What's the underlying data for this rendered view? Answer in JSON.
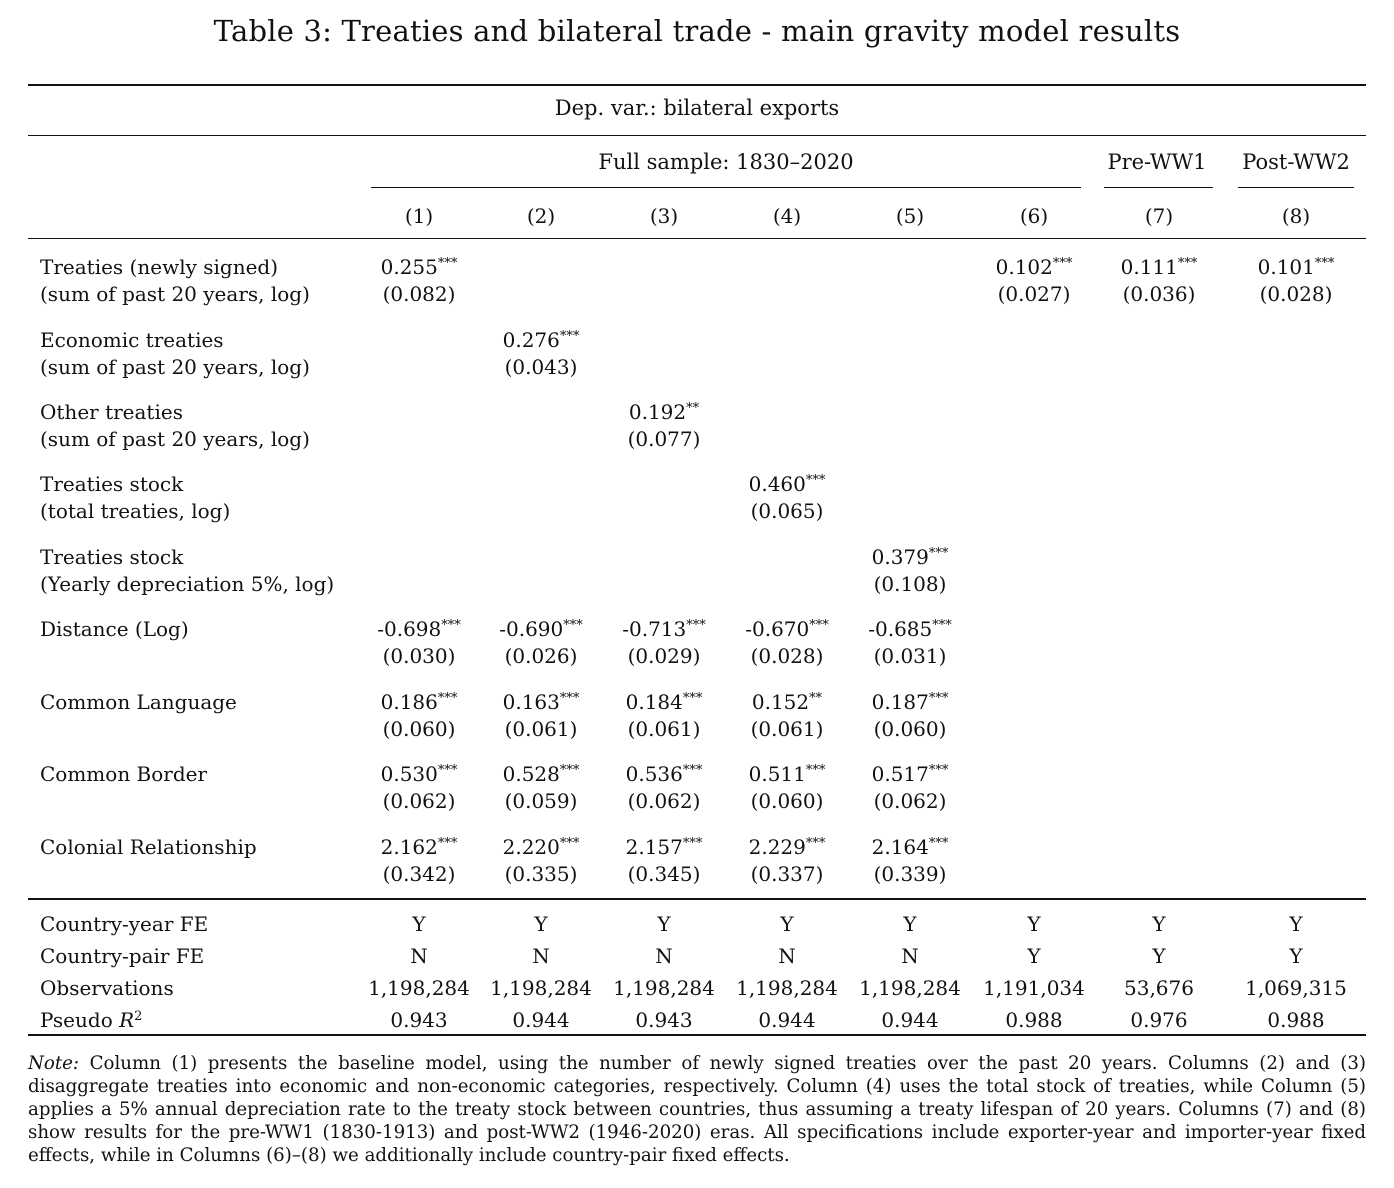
{
  "title": "Table 3: Treaties and bilateral trade - main gravity model results",
  "dep_var": "Dep. var.: bilateral exports",
  "groups": [
    {
      "label": "Full sample: 1830–2020"
    },
    {
      "label": "Pre-WW1"
    },
    {
      "label": "Post-WW2"
    }
  ],
  "columns": [
    "(1)",
    "(2)",
    "(3)",
    "(4)",
    "(5)",
    "(6)",
    "(7)",
    "(8)"
  ],
  "rows": [
    {
      "label1": "Treaties (newly signed)",
      "label2": "(sum of past 20 years, log)",
      "cells": [
        {
          "coef": "0.255",
          "stars": "***",
          "se": "(0.082)"
        },
        null,
        null,
        null,
        null,
        {
          "coef": "0.102",
          "stars": "***",
          "se": "(0.027)"
        },
        {
          "coef": "0.111",
          "stars": "***",
          "se": "(0.036)"
        },
        {
          "coef": "0.101",
          "stars": "***",
          "se": "(0.028)"
        }
      ]
    },
    {
      "label1": "Economic treaties",
      "label2": "(sum of past 20 years, log)",
      "cells": [
        null,
        {
          "coef": "0.276",
          "stars": "***",
          "se": "(0.043)"
        },
        null,
        null,
        null,
        null,
        null,
        null
      ]
    },
    {
      "label1": "Other treaties",
      "label2": "(sum of past 20 years, log)",
      "cells": [
        null,
        null,
        {
          "coef": "0.192",
          "stars": "**",
          "se": "(0.077)"
        },
        null,
        null,
        null,
        null,
        null
      ]
    },
    {
      "label1": "Treaties stock",
      "label2": "(total treaties, log)",
      "cells": [
        null,
        null,
        null,
        {
          "coef": "0.460",
          "stars": "***",
          "se": "(0.065)"
        },
        null,
        null,
        null,
        null
      ]
    },
    {
      "label1": "Treaties stock",
      "label2": "(Yearly depreciation 5%, log)",
      "cells": [
        null,
        null,
        null,
        null,
        {
          "coef": "0.379",
          "stars": "***",
          "se": "(0.108)"
        },
        null,
        null,
        null
      ]
    },
    {
      "label1": "Distance (Log)",
      "label2": "",
      "cells": [
        {
          "coef": "-0.698",
          "stars": "***",
          "se": "(0.030)"
        },
        {
          "coef": "-0.690",
          "stars": "***",
          "se": "(0.026)"
        },
        {
          "coef": "-0.713",
          "stars": "***",
          "se": "(0.029)"
        },
        {
          "coef": "-0.670",
          "stars": "***",
          "se": "(0.028)"
        },
        {
          "coef": "-0.685",
          "stars": "***",
          "se": "(0.031)"
        },
        null,
        null,
        null
      ]
    },
    {
      "label1": "Common Language",
      "label2": "",
      "cells": [
        {
          "coef": "0.186",
          "stars": "***",
          "se": "(0.060)"
        },
        {
          "coef": "0.163",
          "stars": "***",
          "se": "(0.061)"
        },
        {
          "coef": "0.184",
          "stars": "***",
          "se": "(0.061)"
        },
        {
          "coef": "0.152",
          "stars": "**",
          "se": "(0.061)"
        },
        {
          "coef": "0.187",
          "stars": "***",
          "se": "(0.060)"
        },
        null,
        null,
        null
      ]
    },
    {
      "label1": "Common Border",
      "label2": "",
      "cells": [
        {
          "coef": "0.530",
          "stars": "***",
          "se": "(0.062)"
        },
        {
          "coef": "0.528",
          "stars": "***",
          "se": "(0.059)"
        },
        {
          "coef": "0.536",
          "stars": "***",
          "se": "(0.062)"
        },
        {
          "coef": "0.511",
          "stars": "***",
          "se": "(0.060)"
        },
        {
          "coef": "0.517",
          "stars": "***",
          "se": "(0.062)"
        },
        null,
        null,
        null
      ]
    },
    {
      "label1": "Colonial Relationship",
      "label2": "",
      "cells": [
        {
          "coef": "2.162",
          "stars": "***",
          "se": "(0.342)"
        },
        {
          "coef": "2.220",
          "stars": "***",
          "se": "(0.335)"
        },
        {
          "coef": "2.157",
          "stars": "***",
          "se": "(0.345)"
        },
        {
          "coef": "2.229",
          "stars": "***",
          "se": "(0.337)"
        },
        {
          "coef": "2.164",
          "stars": "***",
          "se": "(0.339)"
        },
        null,
        null,
        null
      ]
    }
  ],
  "stats": [
    {
      "label": "Country-year FE",
      "values": [
        "Y",
        "Y",
        "Y",
        "Y",
        "Y",
        "Y",
        "Y",
        "Y"
      ]
    },
    {
      "label": "Country-pair FE",
      "values": [
        "N",
        "N",
        "N",
        "N",
        "N",
        "Y",
        "Y",
        "Y"
      ]
    },
    {
      "label": "Observations",
      "values": [
        "1,198,284",
        "1,198,284",
        "1,198,284",
        "1,198,284",
        "1,198,284",
        "1,191,034",
        "53,676",
        "1,069,315"
      ]
    },
    {
      "label": "Pseudo R",
      "label_sup": "2",
      "values": [
        "0.943",
        "0.944",
        "0.943",
        "0.944",
        "0.944",
        "0.988",
        "0.976",
        "0.988"
      ]
    }
  ],
  "note": {
    "lead": "Note:",
    "text": " Column (1) presents the baseline model, using the number of newly signed treaties over the past 20 years. Columns (2) and (3) disaggregate treaties into economic and non-economic categories, respectively. Column (4) uses the total stock of treaties, while Column (5) applies a 5% annual depreciation rate to the treaty stock between countries, thus assuming a treaty lifespan of 20 years. Columns (7) and (8) show results for the pre-WW1 (1830-1913) and post-WW2 (1946-2020) eras. All specifications include exporter-year and importer-year fixed effects, while in Columns (6)–(8) we additionally include country-pair fixed effects."
  }
}
